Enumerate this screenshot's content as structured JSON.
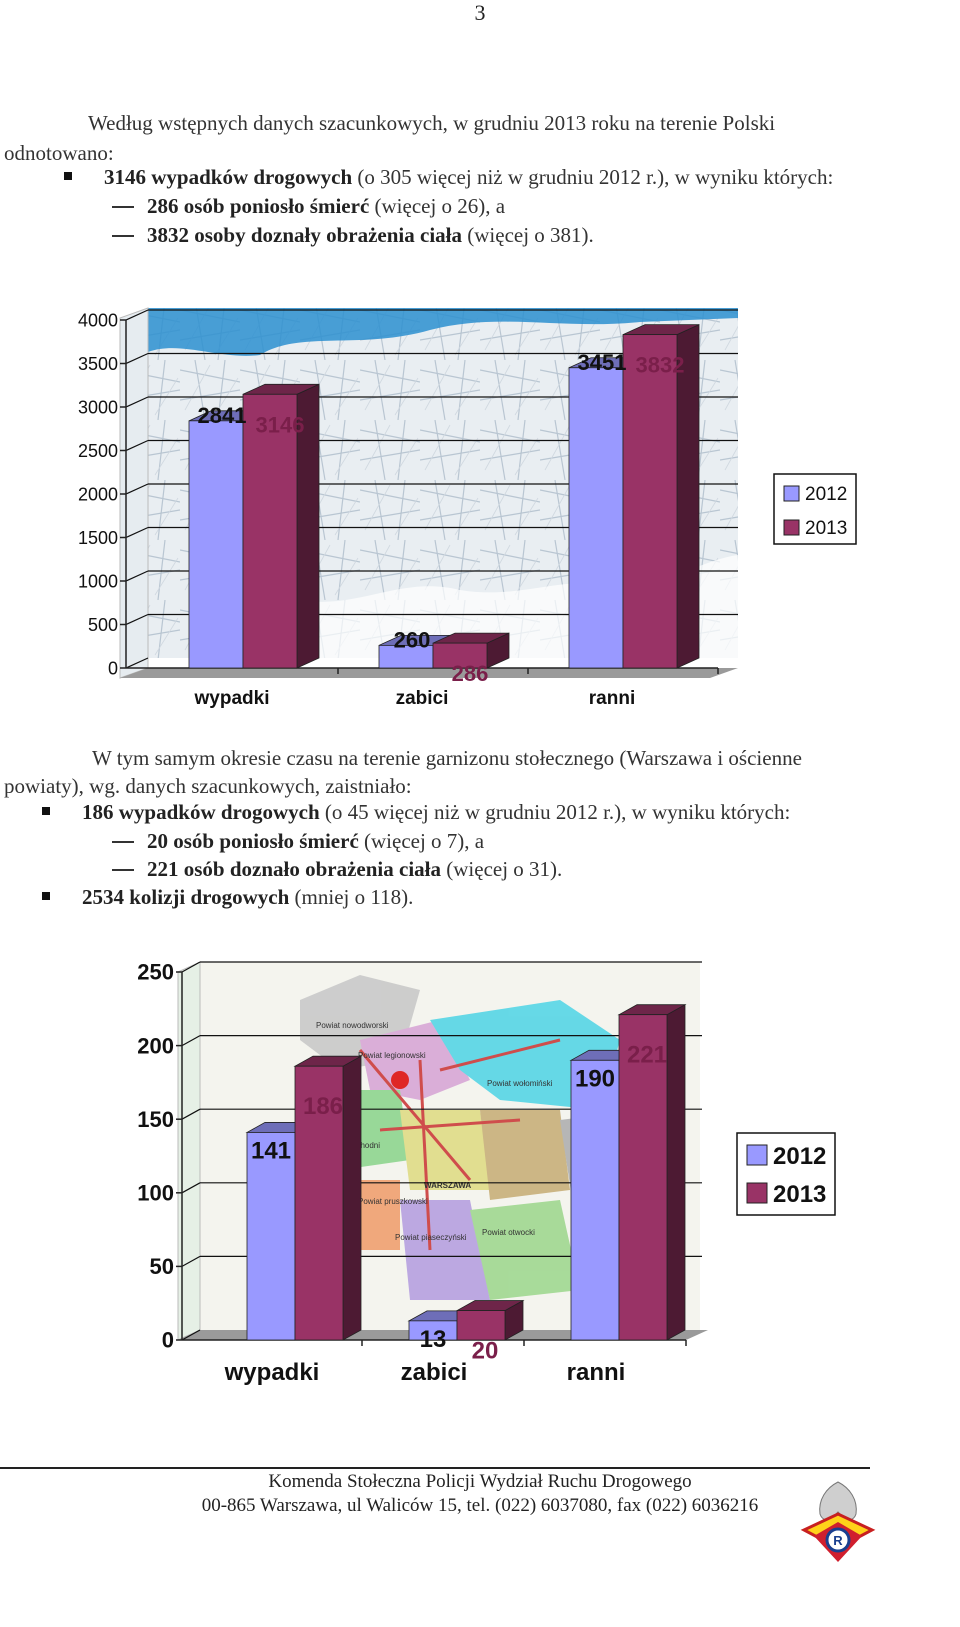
{
  "page_number": "3",
  "intro": {
    "line1": "Według wstępnych danych szacunkowych, w grudniu 2013 roku na terenie Polski",
    "line2": "odnotowano:",
    "bullet1_bold": "3146 wypadków drogowych",
    "bullet1_rest": " (o 305 więcej niż w grudniu 2012 r.), w wyniku których:",
    "dash1_bold": "286 osób poniosło śmierć",
    "dash1_rest": " (więcej o 26), a",
    "dash2_bold": "3832 osoby doznały obrażenia ciała",
    "dash2_rest": " (więcej o 381)."
  },
  "section2": {
    "line1": "W tym samym okresie czasu na terenie garnizonu stołecznego (Warszawa i ościenne",
    "line2": "powiaty), wg. danych szacunkowych, zaistniało:",
    "bullet1_bold": "186 wypadków drogowych",
    "bullet1_rest": " (o 45 więcej niż w grudniu 2012 r.), w wyniku których:",
    "dash1_bold": "20 osób poniosło śmierć",
    "dash1_rest": " (więcej o 7), a",
    "dash2_bold": "221 osób doznało obrażenia ciała",
    "dash2_rest": " (więcej o 31).",
    "bullet2_bold": "2534 kolizji drogowych",
    "bullet2_rest": " (mniej o 118)."
  },
  "chart_data": [
    {
      "type": "bar",
      "categories": [
        "wypadki",
        "zabici",
        "ranni"
      ],
      "series": [
        {
          "name": "2012",
          "values": [
            2841,
            260,
            3451
          ],
          "color": "#9999ff"
        },
        {
          "name": "2013",
          "values": [
            3146,
            286,
            3832
          ],
          "color": "#993366"
        }
      ],
      "y_ticks": [
        0,
        500,
        1000,
        1500,
        2000,
        2500,
        3000,
        3500,
        4000
      ],
      "ylim": [
        0,
        4000
      ],
      "legend": "right",
      "background": "map of Poland"
    },
    {
      "type": "bar",
      "categories": [
        "wypadki",
        "zabici",
        "ranni"
      ],
      "series": [
        {
          "name": "2012",
          "values": [
            141,
            13,
            190
          ],
          "color": "#9999ff"
        },
        {
          "name": "2013",
          "values": [
            186,
            20,
            221
          ],
          "color": "#993366"
        }
      ],
      "y_ticks": [
        0,
        50,
        100,
        150,
        200,
        250
      ],
      "ylim": [
        0,
        250
      ],
      "legend": "right",
      "background": "map of Warsaw garrison districts",
      "map_labels": [
        "Powiat nowodworski",
        "Powiat legionowski",
        "Powiat wołomiński",
        "zachodni",
        "Powiat pruszkowski",
        "WARSZAWA",
        "Powiat piaseczyński",
        "Powiat otwocki"
      ]
    }
  ],
  "footer": {
    "line1": "Komenda Stołeczna Policji Wydział Ruchu Drogowego",
    "line2": "00-865 Warszawa, ul Waliców 15, tel. (022) 6037080, fax (022) 6036216"
  },
  "emblem_icon": "police-road-traffic-emblem"
}
